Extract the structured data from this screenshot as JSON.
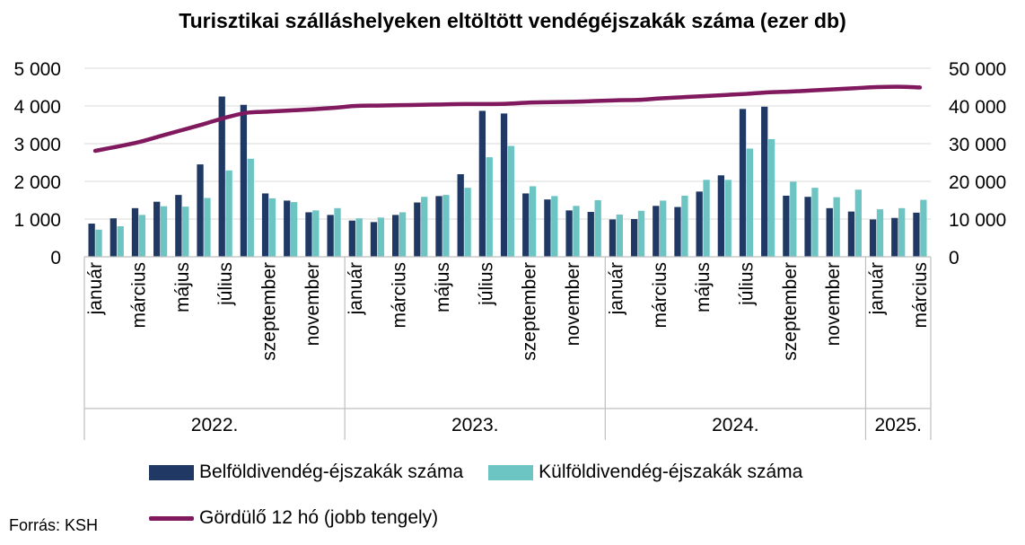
{
  "chart_data": {
    "type": "bar",
    "title": "Turisztikai szálláshelyeken eltöltött vendégéjszakák száma (ezer db)",
    "source": "Forrás: KSH",
    "colors": {
      "domestic": "#1f3864",
      "foreign": "#6cc5c2",
      "rolling": "#80195e",
      "grid": "#d9d9d9",
      "axis": "#bfbfbf"
    },
    "y_left": {
      "range": [
        0,
        5000
      ],
      "ticks": [
        "0",
        "1 000",
        "2 000",
        "3 000",
        "4 000",
        "5 000"
      ],
      "tick_values": [
        0,
        1000,
        2000,
        3000,
        4000,
        5000
      ]
    },
    "y_right": {
      "range": [
        0,
        50000
      ],
      "ticks": [
        "0",
        "10 000",
        "20 000",
        "30 000",
        "40 000",
        "50 000"
      ],
      "tick_values": [
        0,
        10000,
        20000,
        30000,
        40000,
        50000
      ]
    },
    "grid": true,
    "legend_position": "bottom",
    "months": [
      "jan",
      "feb",
      "mar",
      "apr",
      "may",
      "jun",
      "jul",
      "aug",
      "sep",
      "oct",
      "nov",
      "dec",
      "jan",
      "feb",
      "mar",
      "apr",
      "may",
      "jun",
      "jul",
      "aug",
      "sep",
      "oct",
      "nov",
      "dec",
      "jan",
      "feb",
      "mar",
      "apr",
      "may",
      "jun",
      "jul",
      "aug",
      "sep",
      "oct",
      "nov",
      "dec",
      "jan",
      "feb",
      "mar"
    ],
    "x_tick_labels": [
      "január",
      "",
      "március",
      "",
      "május",
      "",
      "július",
      "",
      "szeptember",
      "",
      "november",
      "",
      "január",
      "",
      "március",
      "",
      "május",
      "",
      "július",
      "",
      "szeptember",
      "",
      "november",
      "",
      "január",
      "",
      "március",
      "",
      "május",
      "",
      "július",
      "",
      "szeptember",
      "",
      "november",
      "",
      "január",
      "",
      "március"
    ],
    "years": [
      {
        "label": "2022.",
        "months": 12
      },
      {
        "label": "2023.",
        "months": 12
      },
      {
        "label": "2024.",
        "months": 12
      },
      {
        "label": "2025.",
        "months": 3
      }
    ],
    "series": [
      {
        "name": "Belföldivendég-éjszakák száma",
        "axis": "left",
        "kind": "bar",
        "values": [
          880,
          1020,
          1290,
          1460,
          1640,
          2450,
          4250,
          4030,
          1680,
          1490,
          1180,
          1110,
          960,
          920,
          1110,
          1440,
          1610,
          2190,
          3870,
          3800,
          1680,
          1520,
          1230,
          1190,
          990,
          1000,
          1350,
          1320,
          1730,
          2160,
          3920,
          3980,
          1620,
          1590,
          1290,
          1200,
          990,
          1030,
          1170
        ]
      },
      {
        "name": "Külföldivendég-éjszakák száma",
        "axis": "left",
        "kind": "bar",
        "values": [
          720,
          810,
          1110,
          1340,
          1330,
          1560,
          2290,
          2600,
          1550,
          1450,
          1230,
          1290,
          1020,
          1040,
          1180,
          1590,
          1640,
          1830,
          2640,
          2940,
          1870,
          1610,
          1350,
          1500,
          1120,
          1220,
          1490,
          1620,
          2040,
          2040,
          2870,
          3120,
          1990,
          1830,
          1580,
          1780,
          1260,
          1290,
          1510
        ]
      },
      {
        "name": "Gördülő 12 hó (jobb tengely)",
        "axis": "right",
        "kind": "line",
        "values": [
          28100,
          29200,
          30400,
          32000,
          33600,
          35200,
          36900,
          38200,
          38500,
          38800,
          39100,
          39500,
          40000,
          40100,
          40200,
          40300,
          40400,
          40500,
          40500,
          40600,
          40900,
          41000,
          41100,
          41300,
          41500,
          41600,
          42000,
          42300,
          42600,
          42900,
          43200,
          43600,
          43800,
          44100,
          44400,
          44700,
          45000,
          45100,
          44900
        ]
      }
    ]
  }
}
